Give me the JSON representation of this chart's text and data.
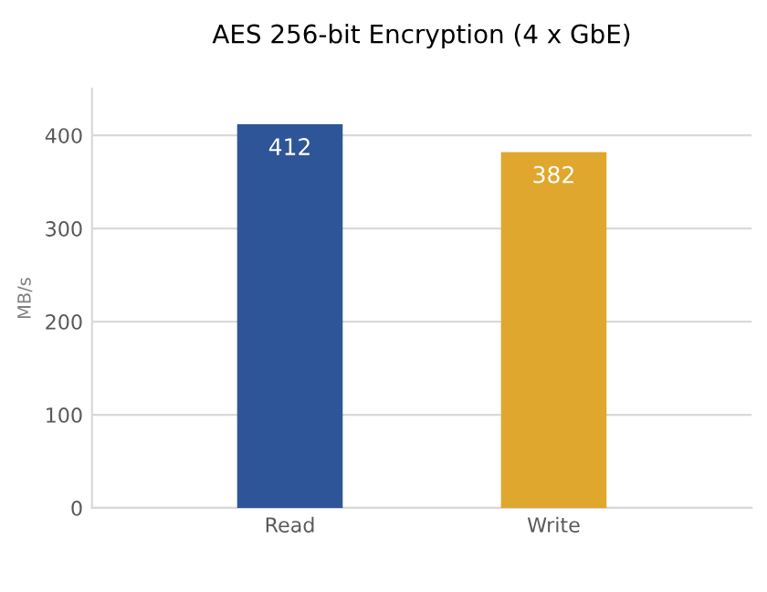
{
  "chart_data": {
    "type": "bar",
    "title": "AES 256-bit Encryption (4 x GbE)",
    "ylabel": "MB/s",
    "categories": [
      "Read",
      "Write"
    ],
    "values": [
      412,
      382
    ],
    "colors": [
      "#2e5597",
      "#e0a72e"
    ],
    "ylim": [
      0,
      450
    ],
    "yticks": [
      0,
      100,
      200,
      300,
      400
    ],
    "grid": "y",
    "data_labels": true,
    "legend": false
  }
}
